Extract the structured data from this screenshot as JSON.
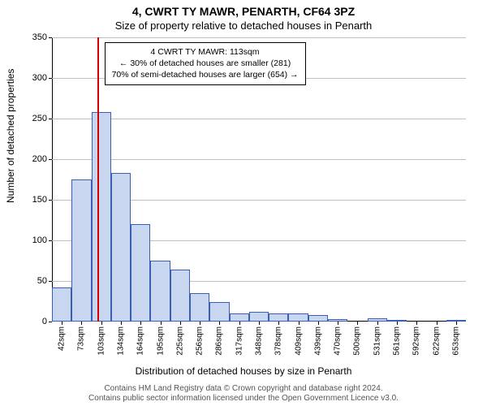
{
  "chart": {
    "type": "histogram",
    "title": "4, CWRT TY MAWR, PENARTH, CF64 3PZ",
    "subtitle": "Size of property relative to detached houses in Penarth",
    "ylabel": "Number of detached properties",
    "xlabel": "Distribution of detached houses by size in Penarth",
    "footnote1": "Contains HM Land Registry data © Crown copyright and database right 2024.",
    "footnote2": "Contains public sector information licensed under the Open Government Licence v3.0.",
    "background_color": "#ffffff",
    "bar_fill": "#c9d6f0",
    "bar_border": "#3a5fb5",
    "grid_color": "#bfbfbf",
    "axis_color": "#000000",
    "title_fontsize": 14,
    "subtitle_fontsize": 13,
    "label_fontsize": 12,
    "tick_fontsize": 11,
    "xtick_fontsize": 10,
    "ylim": [
      0,
      350
    ],
    "yticks": [
      0,
      50,
      100,
      150,
      200,
      250,
      300,
      350
    ],
    "xticks": [
      "42sqm",
      "73sqm",
      "103sqm",
      "134sqm",
      "164sqm",
      "195sqm",
      "225sqm",
      "256sqm",
      "286sqm",
      "317sqm",
      "348sqm",
      "378sqm",
      "409sqm",
      "439sqm",
      "470sqm",
      "500sqm",
      "531sqm",
      "561sqm",
      "592sqm",
      "622sqm",
      "653sqm"
    ],
    "values": [
      42,
      175,
      258,
      183,
      120,
      75,
      64,
      35,
      24,
      10,
      12,
      10,
      10,
      8,
      3,
      0,
      4,
      2,
      0,
      0,
      2
    ],
    "reference": {
      "position_index": 2.33,
      "color": "#d40000",
      "line1": "4 CWRT TY MAWR: 113sqm",
      "line2": "← 30% of detached houses are smaller (281)",
      "line3": "70% of semi-detached houses are larger (654) →"
    }
  }
}
